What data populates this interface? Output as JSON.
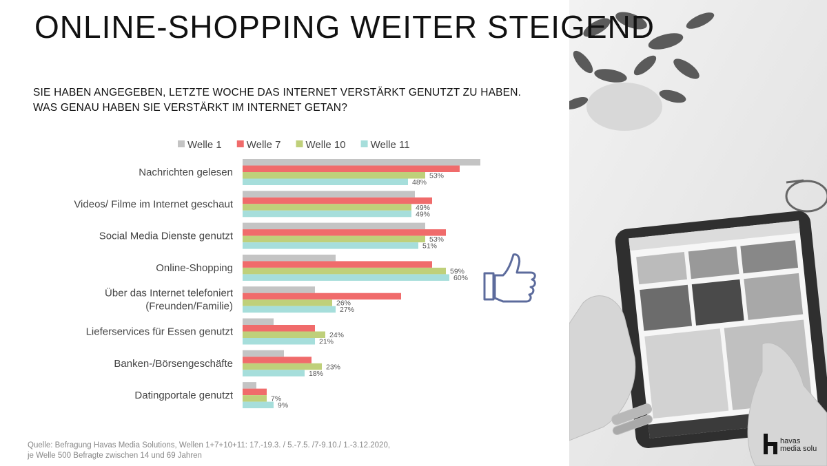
{
  "title": "ONLINE-SHOPPING WEITER STEIGEND",
  "question": {
    "line1": "SIE HABEN ANGEGEBEN, LETZTE WOCHE DAS INTERNET VERSTÄRKT GENUTZT ZU HABEN.",
    "line2": "WAS GENAU HABEN SIE VERSTÄRKT IM INTERNET GETAN?"
  },
  "source": {
    "line1": "Quelle: Befragung Havas Media Solutions, Wellen 1+7+10+11: 17.-19.3. / 5.-7.5. /7-9.10./ 1.-3.12.2020,",
    "line2": "je Welle 500 Befragte zwischen 14 und 69 Jahren"
  },
  "logo": {
    "line1": "havas",
    "line2": "media solu"
  },
  "icons": {
    "thumb": "thumbs-up-icon"
  },
  "chart_data": {
    "type": "bar",
    "orientation": "horizontal",
    "legend_position": "top",
    "categories": [
      [
        "Nachrichten gelesen"
      ],
      [
        "Videos/ Filme im Internet geschaut"
      ],
      [
        "Social Media Dienste genutzt"
      ],
      [
        "Online-Shopping"
      ],
      [
        "Über das Internet telefoniert",
        "(Freunden/Familie)"
      ],
      [
        "Lieferservices für Essen genutzt"
      ],
      [
        "Banken-/Börsengeschäfte"
      ],
      [
        "Datingportale genutzt"
      ]
    ],
    "series": [
      {
        "name": "Welle 1",
        "color": "#c4c4c4",
        "values": [
          69,
          50,
          53,
          27,
          21,
          9,
          12,
          4
        ],
        "labels": [
          "",
          "",
          "",
          "",
          "",
          "",
          "",
          ""
        ]
      },
      {
        "name": "Welle 7",
        "color": "#f06b6b",
        "values": [
          63,
          55,
          59,
          55,
          46,
          21,
          20,
          7
        ],
        "labels": [
          "",
          "",
          "",
          "",
          "",
          "",
          "",
          ""
        ]
      },
      {
        "name": "Welle 10",
        "color": "#bfd07a",
        "values": [
          53,
          49,
          53,
          59,
          26,
          24,
          23,
          7
        ],
        "labels": [
          "53%",
          "49%",
          "53%",
          "59%",
          "26%",
          "24%",
          "23%",
          "7%"
        ]
      },
      {
        "name": "Welle 11",
        "color": "#a6dedb",
        "values": [
          48,
          49,
          51,
          60,
          27,
          21,
          18,
          9
        ],
        "labels": [
          "48%",
          "49%",
          "51%",
          "60%",
          "27%",
          "21%",
          "18%",
          "9%"
        ]
      }
    ]
  }
}
